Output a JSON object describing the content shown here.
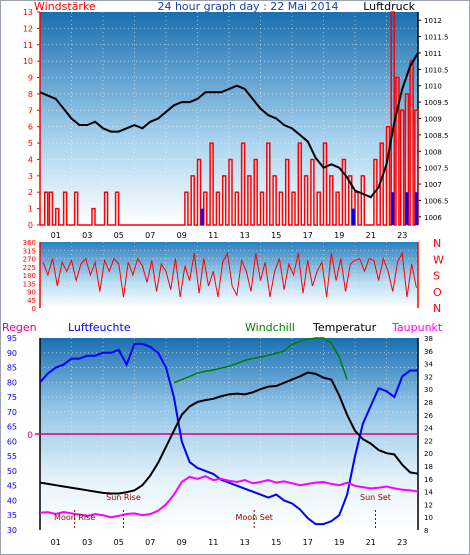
{
  "header": {
    "title": "24 hour graph day : 22 Mai 2014",
    "left_label": "Windstärke",
    "right_label": "Luftdruck"
  },
  "colors": {
    "wind": "#ff0000",
    "gust_blue": "#0000ff",
    "pressure": "#000000",
    "direction": "#ff0000",
    "humidity": "#0000ff",
    "windchill": "#008000",
    "temperature": "#000000",
    "dewpoint": "#ff00ff",
    "rain": "#e0007a",
    "sky_top": "#1a6fb0",
    "sky_bottom": "#ffffff"
  },
  "hour_ticks": [
    "01",
    "03",
    "05",
    "07",
    "09",
    "11",
    "13",
    "15",
    "17",
    "19",
    "21",
    "23"
  ],
  "chart_data": [
    {
      "type": "bar",
      "name": "wind_pressure",
      "left_axis": {
        "label": "Windstärke",
        "ticks": [
          "0",
          "1",
          "2",
          "3",
          "4",
          "5",
          "6",
          "7",
          "8",
          "9",
          "10",
          "11",
          "12",
          "13"
        ],
        "range": [
          0,
          13
        ]
      },
      "right_axis": {
        "label": "Luftdruck",
        "ticks": [
          "1006",
          "1006.5",
          "1007",
          "1007.5",
          "1008",
          "1008.5",
          "1009",
          "1009.5",
          "1010",
          "1010.5",
          "1011",
          "1011.5",
          "1012"
        ],
        "range": [
          1005.75,
          1012.25
        ]
      },
      "x_range": [
        0,
        24
      ],
      "pressure_hours": [
        0,
        0.5,
        1,
        1.5,
        2,
        2.5,
        3,
        3.5,
        4,
        4.5,
        5,
        5.5,
        6,
        6.5,
        7,
        7.5,
        8,
        8.5,
        9,
        9.5,
        10,
        10.5,
        11,
        11.5,
        12,
        12.5,
        13,
        13.5,
        14,
        14.5,
        15,
        15.5,
        16,
        16.5,
        17,
        17.5,
        18,
        18.5,
        19,
        19.5,
        20,
        20.5,
        21,
        21.5,
        22,
        22.5,
        23,
        23.5,
        24
      ],
      "pressure_values": [
        1009.8,
        1009.7,
        1009.6,
        1009.3,
        1009.0,
        1008.8,
        1008.8,
        1008.9,
        1008.7,
        1008.6,
        1008.6,
        1008.7,
        1008.8,
        1008.7,
        1008.9,
        1009.0,
        1009.2,
        1009.4,
        1009.5,
        1009.5,
        1009.6,
        1009.8,
        1009.8,
        1009.8,
        1009.9,
        1010.0,
        1009.9,
        1009.6,
        1009.3,
        1009.1,
        1009.0,
        1008.8,
        1008.7,
        1008.5,
        1008.3,
        1007.8,
        1007.5,
        1007.6,
        1007.5,
        1007.2,
        1006.8,
        1006.7,
        1006.6,
        1006.9,
        1007.6,
        1008.9,
        1009.9,
        1010.6,
        1011.0
      ],
      "wind_hours": [
        0.3,
        0.6,
        1.0,
        1.5,
        2.2,
        3.3,
        4.1,
        4.8,
        9.2,
        9.6,
        10.0,
        10.4,
        10.8,
        11.2,
        11.6,
        12.0,
        12.4,
        12.8,
        13.2,
        13.6,
        14.0,
        14.4,
        14.8,
        15.2,
        15.6,
        16.0,
        16.4,
        16.8,
        17.2,
        17.6,
        18.0,
        18.4,
        18.8,
        19.2,
        19.6,
        20.0,
        20.4,
        21.2,
        21.6,
        22.0,
        22.3,
        22.6,
        22.9,
        23.2,
        23.5,
        23.8
      ],
      "wind_values": [
        2,
        2,
        1,
        2,
        2,
        1,
        2,
        2,
        2,
        3,
        4,
        2,
        5,
        2,
        3,
        4,
        2,
        5,
        3,
        4,
        2,
        5,
        3,
        2,
        4,
        2,
        5,
        3,
        4,
        2,
        5,
        3,
        2,
        4,
        3,
        2,
        3,
        4,
        5,
        6,
        13,
        9,
        7,
        8,
        10,
        7
      ],
      "blue_gust_hours": [
        10.2,
        19.8,
        22.3,
        23.2,
        23.8
      ],
      "blue_gust_values": [
        1,
        1,
        2,
        2,
        2
      ]
    },
    {
      "type": "scatter",
      "name": "wind_direction",
      "left_axis": {
        "ticks": [
          "0",
          "45",
          "90",
          "135",
          "180",
          "225",
          "270",
          "315",
          "360"
        ],
        "range": [
          0,
          360
        ]
      },
      "right_letters": [
        "N",
        "W",
        "S",
        "O",
        "N"
      ],
      "x_range": [
        0,
        24
      ],
      "direction_hours": [
        0.2,
        0.5,
        0.8,
        1.1,
        1.4,
        1.7,
        2.0,
        2.3,
        2.6,
        2.9,
        3.2,
        3.5,
        3.8,
        4.1,
        4.4,
        4.7,
        5.0,
        5.3,
        5.6,
        5.9,
        6.2,
        6.5,
        6.8,
        7.1,
        7.4,
        7.7,
        8.0,
        8.3,
        8.6,
        8.9,
        9.2,
        9.5,
        9.8,
        10.1,
        10.4,
        10.7,
        11.0,
        11.3,
        11.6,
        11.9,
        12.2,
        12.5,
        12.8,
        13.1,
        13.4,
        13.7,
        14.0,
        14.3,
        14.6,
        14.9,
        15.2,
        15.5,
        15.8,
        16.1,
        16.4,
        16.7,
        17.0,
        17.3,
        17.6,
        17.9,
        18.2,
        18.5,
        18.8,
        19.1,
        19.4,
        19.7,
        20.0,
        20.3,
        20.6,
        20.9,
        21.2,
        21.5,
        21.8,
        22.1,
        22.4,
        22.7,
        23.0,
        23.3,
        23.6,
        23.9
      ],
      "direction_values": [
        250,
        180,
        270,
        120,
        250,
        200,
        260,
        150,
        240,
        270,
        180,
        250,
        90,
        260,
        200,
        270,
        240,
        60,
        250,
        180,
        270,
        230,
        140,
        260,
        90,
        240,
        200,
        100,
        270,
        60,
        230,
        150,
        300,
        80,
        270,
        120,
        200,
        60,
        250,
        300,
        120,
        70,
        260,
        200,
        90,
        300,
        150,
        250,
        60,
        200,
        270,
        100,
        240,
        180,
        300,
        80,
        260,
        120,
        200,
        250,
        60,
        300,
        150,
        270,
        90,
        240,
        260,
        270,
        200,
        270,
        260,
        150,
        270,
        200,
        90,
        250,
        300,
        60,
        240,
        110
      ]
    },
    {
      "type": "line",
      "name": "humidity_temperature",
      "series_labels": {
        "rain": "Regen",
        "humidity": "Luftfeuchte",
        "windchill": "Windchill",
        "temperature": "Temperatur",
        "dewpoint": "Taupunkt"
      },
      "left_axis": {
        "ticks": [
          "30",
          "35",
          "40",
          "45",
          "50",
          "55",
          "60",
          "65",
          "70",
          "75",
          "80",
          "85",
          "90",
          "95"
        ],
        "range": [
          30,
          95
        ]
      },
      "right_axis": {
        "ticks": [
          "8",
          "10",
          "12",
          "14",
          "16",
          "18",
          "20",
          "22",
          "24",
          "26",
          "28",
          "30",
          "32",
          "34",
          "36",
          "38"
        ],
        "range": [
          8,
          38
        ]
      },
      "rain_marker": "0",
      "x_range": [
        0,
        24
      ],
      "annotations": [
        {
          "text": "Moon Rise",
          "hour": 2.2
        },
        {
          "text": "Sun Rise",
          "hour": 5.3
        },
        {
          "text": "Moon Set",
          "hour": 13.6
        },
        {
          "text": "Sun Set",
          "hour": 21.3
        }
      ],
      "hours": [
        0,
        0.5,
        1,
        1.5,
        2,
        2.5,
        3,
        3.5,
        4,
        4.5,
        5,
        5.5,
        6,
        6.5,
        7,
        7.5,
        8,
        8.5,
        9,
        9.5,
        10,
        10.5,
        11,
        11.5,
        12,
        12.5,
        13,
        13.5,
        14,
        14.5,
        15,
        15.5,
        16,
        16.5,
        17,
        17.5,
        18,
        18.5,
        19,
        19.5,
        20,
        20.5,
        21,
        21.5,
        22,
        22.5,
        23,
        23.5,
        24
      ],
      "humidity": [
        80,
        83,
        85,
        86,
        88,
        88,
        89,
        89,
        90,
        90,
        91,
        86,
        93,
        93,
        92,
        90,
        85,
        75,
        60,
        53,
        51,
        50,
        49,
        47,
        46,
        45,
        44,
        43,
        42,
        41,
        42,
        40,
        39,
        37,
        34,
        32,
        32,
        33,
        35,
        42,
        55,
        66,
        72,
        78,
        77,
        75,
        82,
        84,
        84
      ],
      "temperature": [
        15.4,
        15.2,
        15.0,
        14.8,
        14.6,
        14.4,
        14.2,
        14.0,
        13.8,
        13.7,
        13.7,
        13.9,
        14.2,
        15.0,
        16.5,
        18.5,
        21.0,
        23.5,
        26.0,
        27.3,
        28.0,
        28.3,
        28.5,
        28.9,
        29.2,
        29.3,
        29.2,
        29.5,
        30.0,
        30.4,
        30.5,
        31.0,
        31.5,
        32.0,
        32.6,
        32.4,
        31.8,
        31.5,
        29.0,
        26.0,
        23.5,
        22.2,
        21.5,
        20.5,
        20.0,
        19.8,
        18.2,
        17.0,
        16.8
      ],
      "windchill_hours": [
        8.5,
        9,
        9.5,
        10,
        10.5,
        11,
        11.5,
        12,
        12.5,
        13,
        13.5,
        14,
        14.5,
        15,
        15.5,
        16,
        16.5,
        17,
        17.5,
        18,
        18.5,
        19,
        19.5
      ],
      "windchill": [
        31.0,
        31.5,
        32.0,
        32.5,
        32.8,
        33.0,
        33.3,
        33.6,
        34.0,
        34.5,
        34.8,
        35.0,
        35.3,
        35.6,
        36.0,
        37.0,
        37.5,
        37.8,
        38.0,
        38.0,
        37.2,
        35.0,
        31.5
      ],
      "dewpoint": [
        10.7,
        10.8,
        10.5,
        10.8,
        10.6,
        10.4,
        10.2,
        10.5,
        10.3,
        10.0,
        10.2,
        10.5,
        10.6,
        10.3,
        10.5,
        11.0,
        12.0,
        13.5,
        15.5,
        16.3,
        16.0,
        16.4,
        15.8,
        16.0,
        15.7,
        15.5,
        15.8,
        15.3,
        15.5,
        15.8,
        15.4,
        15.6,
        15.3,
        15.0,
        15.2,
        15.4,
        15.5,
        15.2,
        15.0,
        15.4,
        14.9,
        14.7,
        14.5,
        14.6,
        14.8,
        14.5,
        14.3,
        14.2,
        14.0
      ]
    }
  ],
  "annotation_labels": {
    "moon_rise": "Moon Rise",
    "sun_rise": "Sun Rise",
    "moon_set": "Moon Set",
    "sun_set": "Sun Set"
  }
}
